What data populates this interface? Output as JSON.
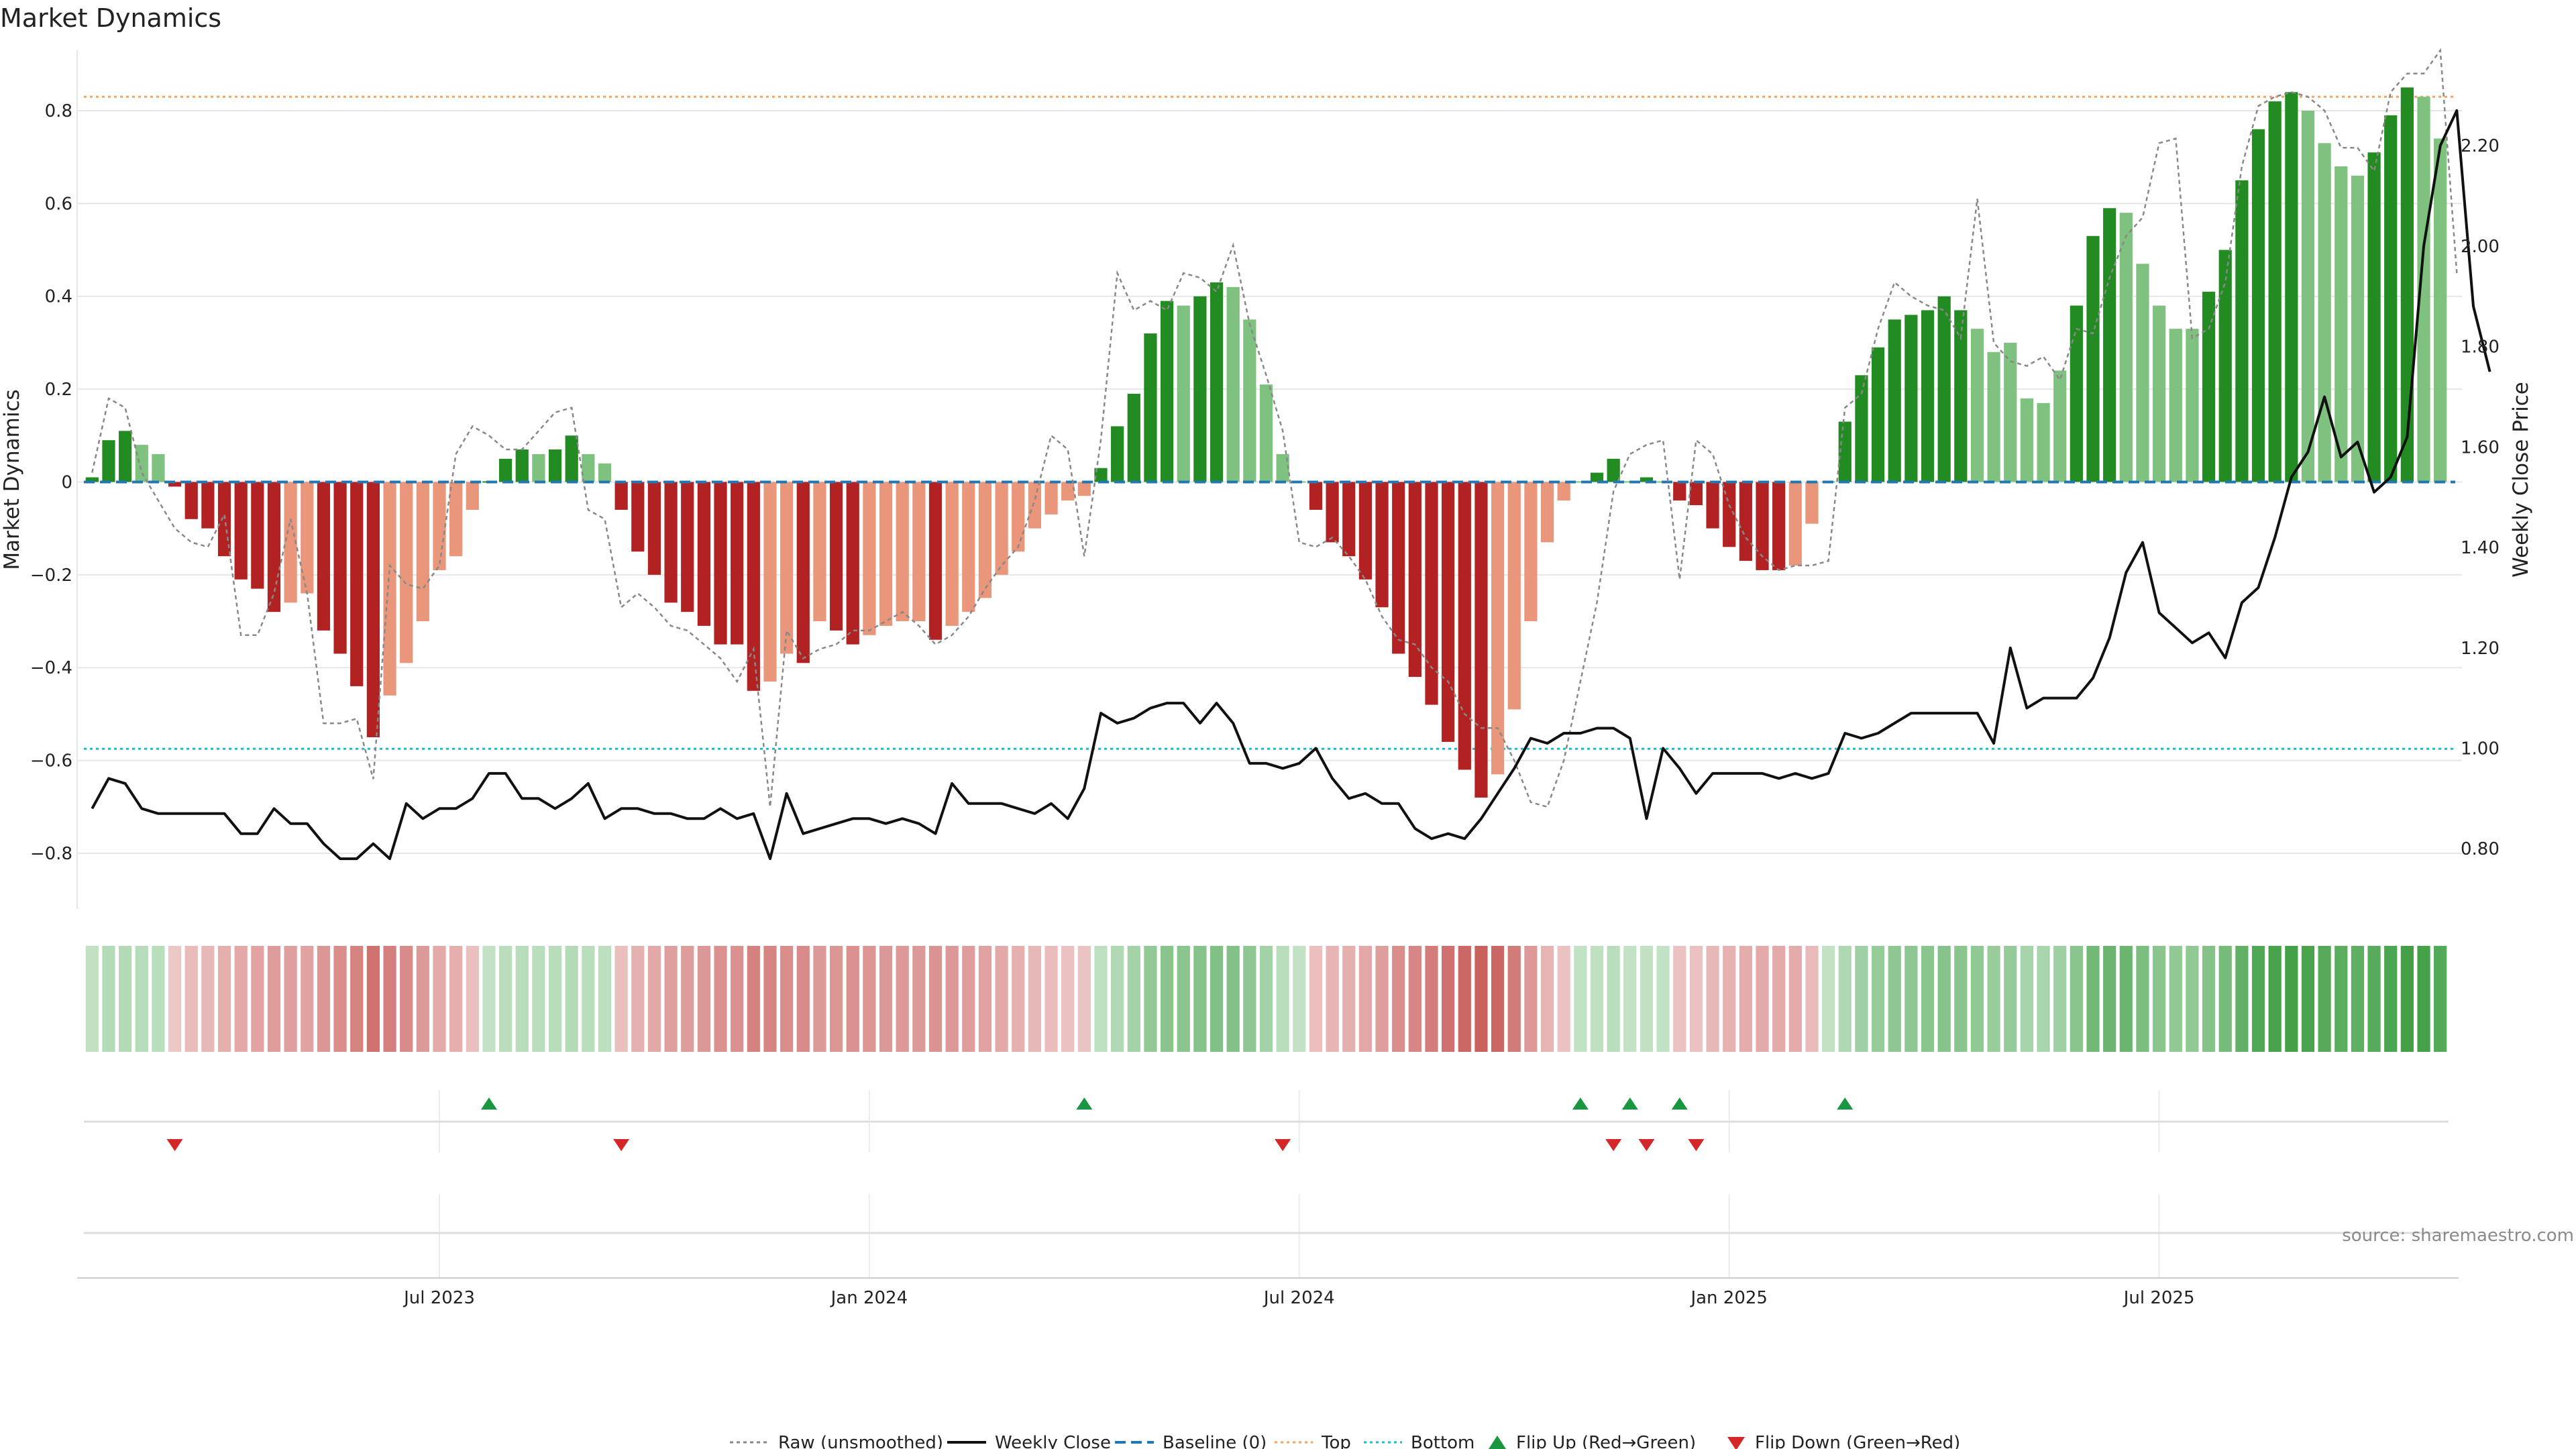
{
  "chart_data": {
    "type": "bar",
    "title": "Market Dynamics",
    "ylabel_left": "Market Dynamics",
    "ylabel_right": "Weekly Close Price",
    "left_ylim": [
      -0.92,
      0.93
    ],
    "right_ylim": [
      0.68,
      2.39
    ],
    "left_ticks": [
      0.8,
      0.6,
      0.4,
      0.2,
      0,
      -0.2,
      -0.4,
      -0.6,
      -0.8
    ],
    "left_tick_labels": [
      "0.8",
      "0.6",
      "0.4",
      "0.2",
      "0",
      "−0.2",
      "−0.4",
      "−0.6",
      "−0.8"
    ],
    "right_ticks": [
      2.2,
      2.0,
      1.8,
      1.6,
      1.4,
      1.2,
      1.0,
      0.8
    ],
    "right_tick_labels": [
      "2.20",
      "2.00",
      "1.80",
      "1.60",
      "1.40",
      "1.20",
      "1.00",
      "0.80"
    ],
    "x_tick_labels": [
      "Jul 2023",
      "Jan 2024",
      "Jul 2024",
      "Jan 2025",
      "Jul 2025"
    ],
    "x_tick_weeks": [
      21,
      47,
      73,
      99,
      125
    ],
    "top_line": 0.83,
    "bottom_line": -0.575,
    "baseline": 0,
    "colors": {
      "strong_green": "#228b22",
      "light_green": "#7fc17f",
      "strong_red": "#b22222",
      "light_red": "#e9967a",
      "raw": "#888888",
      "close": "#111111",
      "baseline": "#1f77b4",
      "top": "#f4a460",
      "bottom": "#17becf",
      "flip_up": "#1a9641",
      "flip_down": "#d62728",
      "grid": "#e6e6e6"
    },
    "series": [
      {
        "name": "Market Dynamics (smoothed)",
        "values": [
          0.01,
          0.09,
          0.11,
          0.08,
          0.06,
          -0.01,
          -0.08,
          -0.1,
          -0.16,
          -0.21,
          -0.23,
          -0.28,
          -0.26,
          -0.24,
          -0.32,
          -0.37,
          -0.44,
          -0.55,
          -0.46,
          -0.39,
          -0.3,
          -0.19,
          -0.16,
          -0.06,
          0.0,
          0.05,
          0.07,
          0.06,
          0.07,
          0.1,
          0.06,
          0.04,
          -0.06,
          -0.15,
          -0.2,
          -0.26,
          -0.28,
          -0.31,
          -0.35,
          -0.35,
          -0.45,
          -0.43,
          -0.37,
          -0.39,
          -0.3,
          -0.32,
          -0.35,
          -0.33,
          -0.31,
          -0.3,
          -0.3,
          -0.34,
          -0.31,
          -0.28,
          -0.25,
          -0.2,
          -0.15,
          -0.1,
          -0.07,
          -0.04,
          -0.03,
          0.03,
          0.12,
          0.19,
          0.32,
          0.39,
          0.38,
          0.4,
          0.43,
          0.42,
          0.35,
          0.21,
          0.06,
          0.0,
          -0.06,
          -0.13,
          -0.16,
          -0.21,
          -0.27,
          -0.37,
          -0.42,
          -0.48,
          -0.56,
          -0.62,
          -0.68,
          -0.63,
          -0.49,
          -0.3,
          -0.13,
          -0.04,
          0.0,
          0.02,
          0.05,
          0.0,
          0.01,
          0.0,
          -0.04,
          -0.05,
          -0.1,
          -0.14,
          -0.17,
          -0.19,
          -0.19,
          -0.18,
          -0.09,
          0.0,
          0.13,
          0.23,
          0.29,
          0.35,
          0.36,
          0.37,
          0.4,
          0.37,
          0.33,
          0.28,
          0.3,
          0.18,
          0.17,
          0.24,
          0.38,
          0.53,
          0.59,
          0.58,
          0.47,
          0.38,
          0.33,
          0.33,
          0.41,
          0.5,
          0.65,
          0.76,
          0.82,
          0.84,
          0.8,
          0.73,
          0.68,
          0.66,
          0.71,
          0.79,
          0.85,
          0.83,
          0.74
        ],
        "strength": [
          "strong",
          "strong",
          "strong",
          "light",
          "light",
          "strong",
          "strong",
          "strong",
          "strong",
          "strong",
          "strong",
          "strong",
          "light",
          "light",
          "strong",
          "strong",
          "strong",
          "strong",
          "light",
          "light",
          "light",
          "light",
          "light",
          "light",
          "strong",
          "strong",
          "strong",
          "light",
          "strong",
          "strong",
          "light",
          "light",
          "strong",
          "strong",
          "strong",
          "strong",
          "strong",
          "strong",
          "strong",
          "strong",
          "strong",
          "light",
          "light",
          "strong",
          "light",
          "strong",
          "strong",
          "light",
          "light",
          "light",
          "light",
          "strong",
          "light",
          "light",
          "light",
          "light",
          "light",
          "light",
          "light",
          "light",
          "light",
          "strong",
          "strong",
          "strong",
          "strong",
          "strong",
          "light",
          "strong",
          "strong",
          "light",
          "light",
          "light",
          "light",
          "light",
          "strong",
          "strong",
          "strong",
          "strong",
          "strong",
          "strong",
          "strong",
          "strong",
          "strong",
          "strong",
          "strong",
          "light",
          "light",
          "light",
          "light",
          "light",
          "light",
          "strong",
          "strong",
          "light",
          "strong",
          "light",
          "strong",
          "strong",
          "strong",
          "strong",
          "strong",
          "strong",
          "strong",
          "light",
          "light",
          "light",
          "strong",
          "strong",
          "strong",
          "strong",
          "strong",
          "strong",
          "strong",
          "strong",
          "light",
          "light",
          "light",
          "light",
          "light",
          "light",
          "strong",
          "strong",
          "strong",
          "light",
          "light",
          "light",
          "light",
          "light",
          "strong",
          "strong",
          "strong",
          "strong",
          "strong",
          "strong",
          "light",
          "light",
          "light",
          "light",
          "strong",
          "strong",
          "strong",
          "light",
          "light"
        ]
      },
      {
        "name": "Raw (unsmoothed)",
        "values": [
          0.02,
          0.18,
          0.16,
          0.02,
          -0.04,
          -0.1,
          -0.13,
          -0.14,
          -0.07,
          -0.33,
          -0.33,
          -0.24,
          -0.08,
          -0.24,
          -0.52,
          -0.52,
          -0.51,
          -0.64,
          -0.18,
          -0.22,
          -0.23,
          -0.18,
          0.06,
          0.12,
          0.1,
          0.07,
          0.07,
          0.11,
          0.15,
          0.16,
          -0.06,
          -0.08,
          -0.27,
          -0.24,
          -0.27,
          -0.31,
          -0.32,
          -0.35,
          -0.38,
          -0.43,
          -0.36,
          -0.7,
          -0.32,
          -0.38,
          -0.36,
          -0.35,
          -0.32,
          -0.32,
          -0.3,
          -0.28,
          -0.31,
          -0.35,
          -0.33,
          -0.29,
          -0.23,
          -0.18,
          -0.14,
          -0.04,
          0.1,
          0.07,
          -0.16,
          0.09,
          0.45,
          0.37,
          0.39,
          0.37,
          0.45,
          0.44,
          0.41,
          0.51,
          0.34,
          0.23,
          0.11,
          -0.13,
          -0.14,
          -0.12,
          -0.16,
          -0.21,
          -0.29,
          -0.34,
          -0.35,
          -0.4,
          -0.43,
          -0.5,
          -0.53,
          -0.53,
          -0.6,
          -0.69,
          -0.7,
          -0.6,
          -0.43,
          -0.26,
          -0.02,
          0.06,
          0.08,
          0.09,
          -0.21,
          0.09,
          0.06,
          -0.05,
          -0.12,
          -0.16,
          -0.19,
          -0.18,
          -0.18,
          -0.17,
          0.16,
          0.19,
          0.33,
          0.43,
          0.4,
          0.38,
          0.37,
          0.31,
          0.61,
          0.3,
          0.26,
          0.25,
          0.27,
          0.22,
          0.33,
          0.32,
          0.44,
          0.53,
          0.57,
          0.73,
          0.74,
          0.31,
          0.33,
          0.43,
          0.68,
          0.81,
          0.83,
          0.84,
          0.83,
          0.8,
          0.72,
          0.72,
          0.67,
          0.84,
          0.88,
          0.88,
          0.93,
          0.45
        ]
      },
      {
        "name": "Weekly Close",
        "values": [
          0.88,
          0.94,
          0.93,
          0.88,
          0.87,
          0.87,
          0.87,
          0.87,
          0.87,
          0.83,
          0.83,
          0.88,
          0.85,
          0.85,
          0.81,
          0.78,
          0.78,
          0.81,
          0.78,
          0.89,
          0.86,
          0.88,
          0.88,
          0.9,
          0.95,
          0.95,
          0.9,
          0.9,
          0.88,
          0.9,
          0.93,
          0.86,
          0.88,
          0.88,
          0.87,
          0.87,
          0.86,
          0.86,
          0.88,
          0.86,
          0.87,
          0.78,
          0.91,
          0.83,
          0.84,
          0.85,
          0.86,
          0.86,
          0.85,
          0.86,
          0.85,
          0.83,
          0.93,
          0.89,
          0.89,
          0.89,
          0.88,
          0.87,
          0.89,
          0.86,
          0.92,
          1.07,
          1.05,
          1.06,
          1.08,
          1.09,
          1.09,
          1.05,
          1.09,
          1.05,
          0.97,
          0.97,
          0.96,
          0.97,
          1.0,
          0.94,
          0.9,
          0.91,
          0.89,
          0.89,
          0.84,
          0.82,
          0.83,
          0.82,
          0.86,
          0.91,
          0.96,
          1.02,
          1.01,
          1.03,
          1.03,
          1.04,
          1.04,
          1.02,
          0.86,
          1.0,
          0.96,
          0.91,
          0.95,
          0.95,
          0.95,
          0.95,
          0.94,
          0.95,
          0.94,
          0.95,
          1.03,
          1.02,
          1.03,
          1.05,
          1.07,
          1.07,
          1.07,
          1.07,
          1.07,
          1.01,
          1.2,
          1.08,
          1.1,
          1.1,
          1.1,
          1.14,
          1.22,
          1.35,
          1.41,
          1.27,
          1.24,
          1.21,
          1.23,
          1.18,
          1.29,
          1.32,
          1.42,
          1.54,
          1.59,
          1.7,
          1.58,
          1.61,
          1.51,
          1.54,
          1.62,
          2.0,
          2.2,
          2.27,
          1.88,
          1.75
        ]
      }
    ],
    "flip_up_weeks": [
      24,
      60,
      90,
      93,
      96,
      106
    ],
    "flip_down_weeks": [
      5,
      32,
      72,
      92,
      94,
      97
    ],
    "legend": {
      "raw": "Raw (unsmoothed)",
      "close": "Weekly Close",
      "baseline": "Baseline (0)",
      "top": "Top",
      "bottom": "Bottom",
      "flip_up": "Flip Up (Red→Green)",
      "flip_down": "Flip Down (Green→Red)"
    },
    "source_note": "source: sharemaestro.com"
  }
}
